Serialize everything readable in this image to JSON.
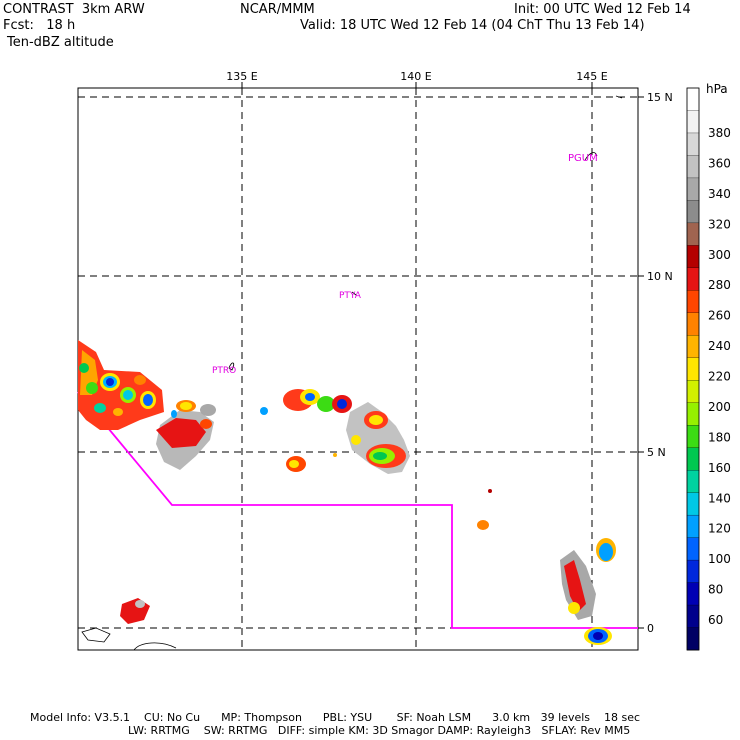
{
  "header": {
    "model": "CONTRAST  3km ARW",
    "forecast": "Fcst:   18 h",
    "field": "Ten-dBZ altitude",
    "center": "NCAR/MMM",
    "init": "Init: 00 UTC Wed 12 Feb 14",
    "valid": "Valid: 18 UTC Wed 12 Feb 14 (04 ChT Thu 13 Feb 14)"
  },
  "map": {
    "lon_labels": [
      "135 E",
      "140 E",
      "145 E"
    ],
    "lat_labels": [
      "15 N",
      "10 N",
      "5 N",
      "0"
    ],
    "stations": [
      {
        "id": "PGUM",
        "label": "PGUM"
      },
      {
        "id": "PTYA",
        "label": "PTYA"
      },
      {
        "id": "PTRO",
        "label": "PTRO"
      }
    ]
  },
  "legend": {
    "unit": "hPa",
    "ticks": [
      "380",
      "360",
      "340",
      "320",
      "300",
      "280",
      "260",
      "240",
      "220",
      "200",
      "180",
      "160",
      "140",
      "120",
      "100",
      "80",
      "60"
    ],
    "colors": [
      "#ffffff",
      "#f2f2f2",
      "#d8d8d8",
      "#c2c2c2",
      "#a8a8a8",
      "#8c8c8c",
      "#a06450",
      "#b40000",
      "#e61414",
      "#ff4600",
      "#ff8200",
      "#ffb400",
      "#ffe600",
      "#d2f000",
      "#96f000",
      "#3cdc14",
      "#00c850",
      "#00d2a0",
      "#00c8e6",
      "#00a0ff",
      "#0064ff",
      "#0028dc",
      "#0000b4",
      "#00008c",
      "#000064"
    ]
  },
  "footer": {
    "line1": "Model Info: V3.5.1    CU: No Cu      MP: Thompson      PBL: YSU       SF: Noah LSM      3.0 km   39 levels    18 sec",
    "line2": "LW: RRTMG    SW: RRTMG   DIFF: simple KM: 3D Smagor DAMP: Rayleigh3   SFLAY: Rev MM5"
  }
}
